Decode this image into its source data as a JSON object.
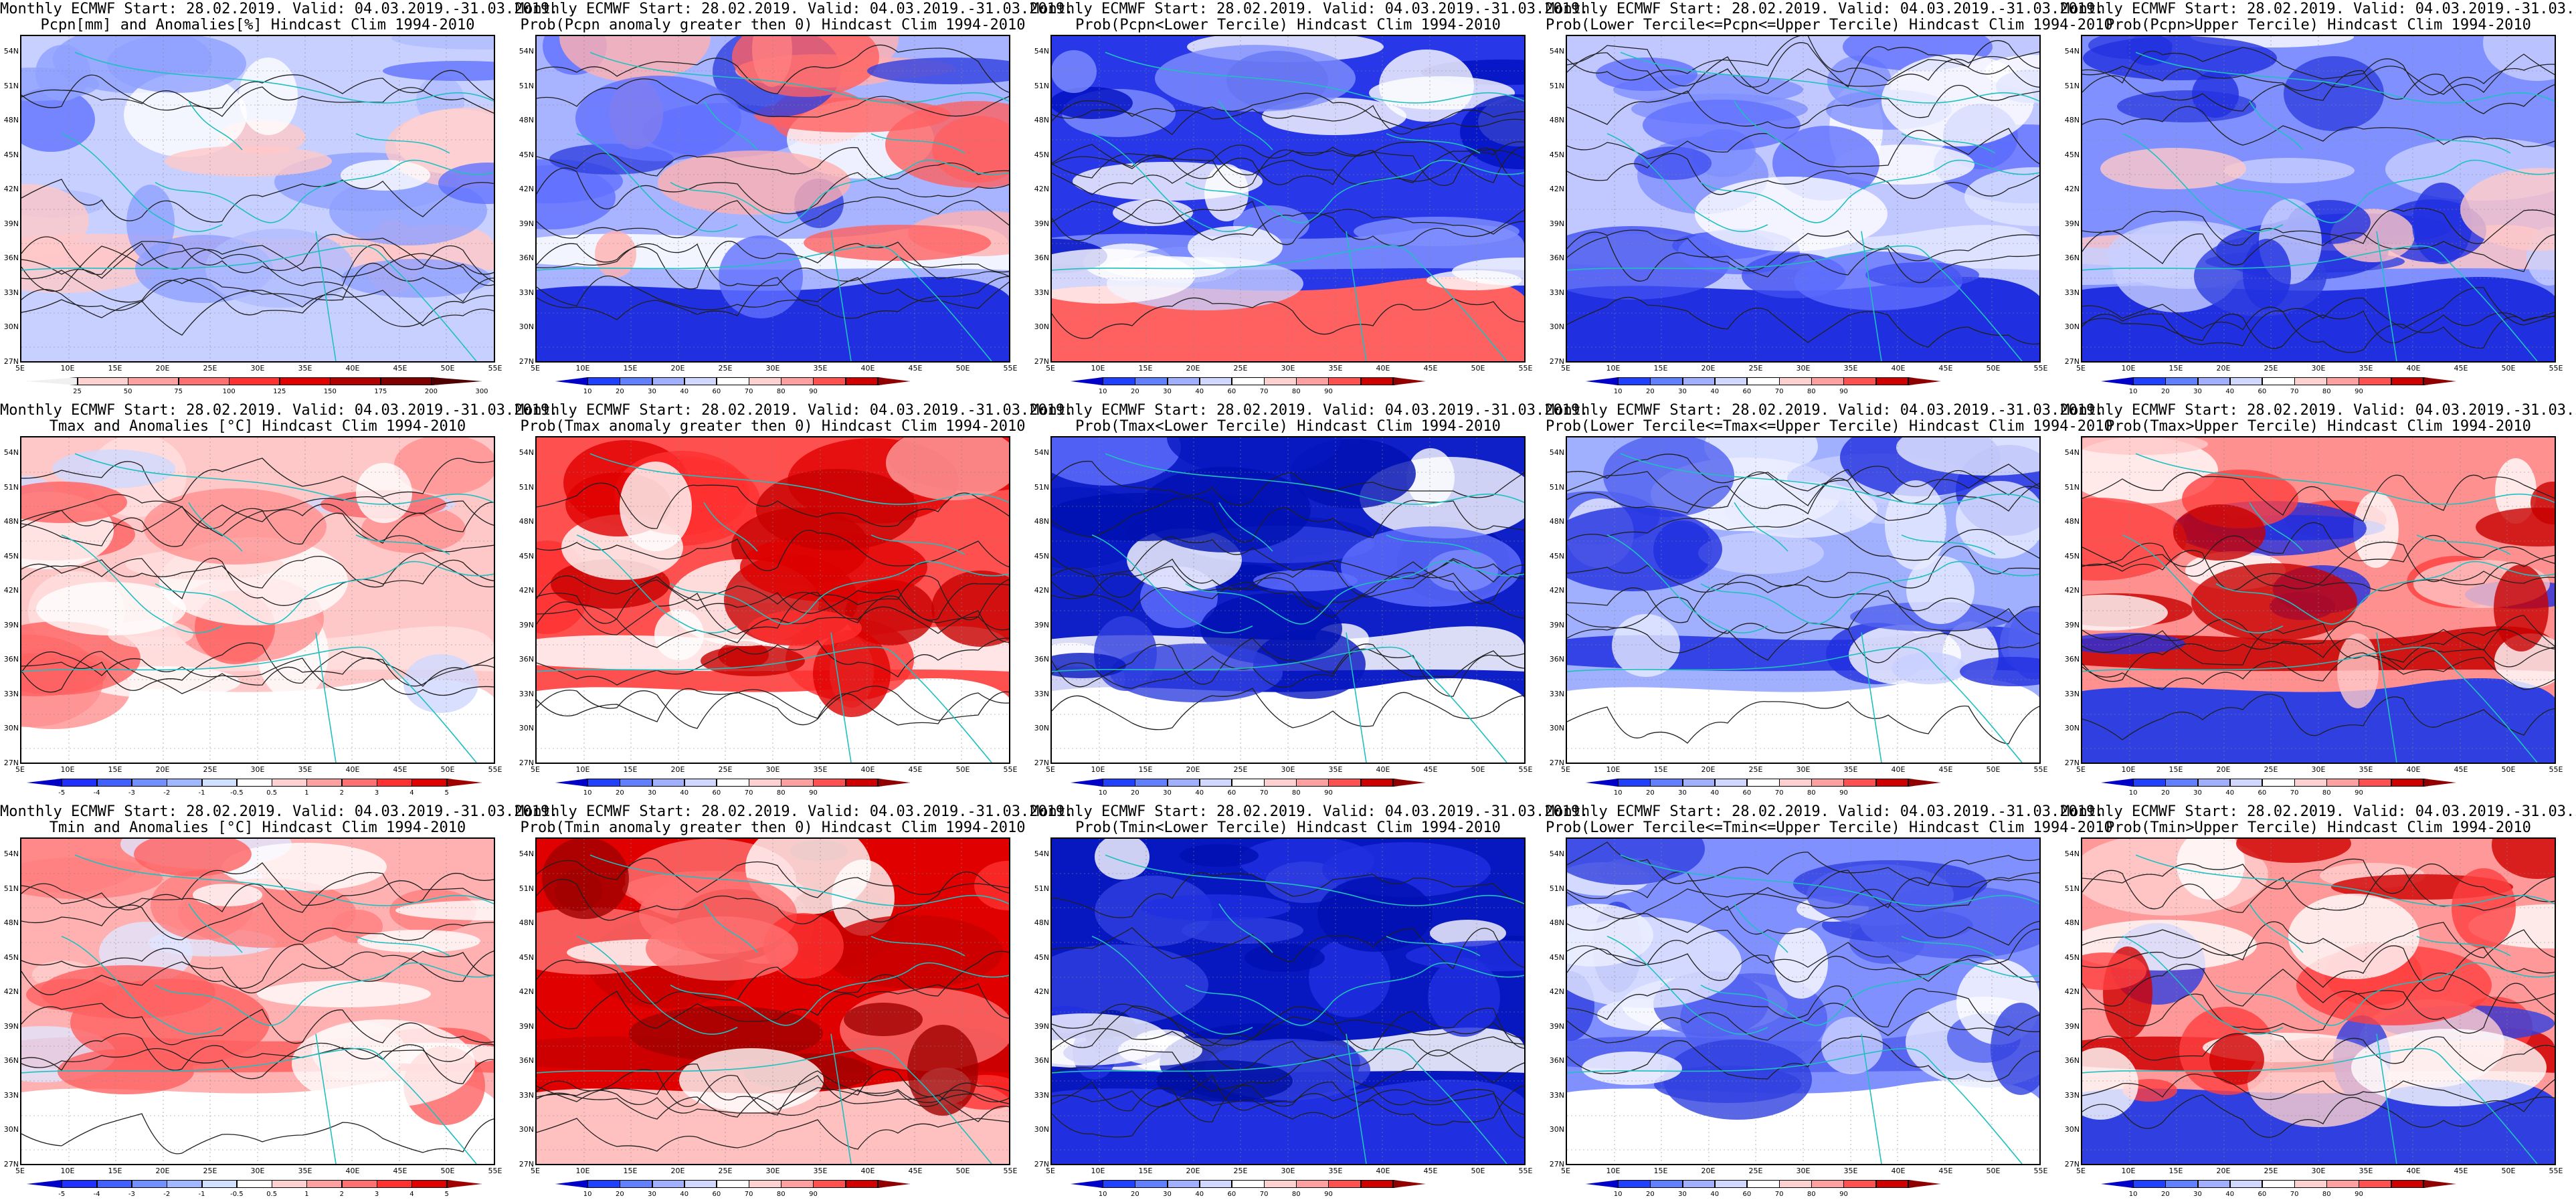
{
  "header": {
    "line1": "Monthly ECMWF Start: 28.02.2019. Valid: 04.03.2019.-31.03.2019."
  },
  "panels": [
    {
      "line2": "Pcpn[mm] and Anomalies[%] Hindcast Clim 1994-2010",
      "scheme": "anom",
      "pattern": "pcpn_anom",
      "cbar": "pcpn"
    },
    {
      "line2": "Prob(Pcpn anomaly greater then 0) Hindcast Clim 1994-2010",
      "scheme": "prob",
      "pattern": "pcpn_p0",
      "cbar": "prob"
    },
    {
      "line2": "Prob(Pcpn<Lower Tercile) Hindcast Clim 1994-2010",
      "scheme": "prob",
      "pattern": "pcpn_lo",
      "cbar": "prob"
    },
    {
      "line2": "Prob(Lower Tercile<=Pcpn<=Upper Tercile) Hindcast Clim 1994-2010",
      "scheme": "prob",
      "pattern": "pcpn_mid",
      "cbar": "prob"
    },
    {
      "line2": "Prob(Pcpn>Upper Tercile) Hindcast Clim 1994-2010",
      "scheme": "prob",
      "pattern": "pcpn_up",
      "cbar": "prob"
    },
    {
      "line2": "Tmax and Anomalies [°C] Hindcast Clim 1994-2010",
      "scheme": "anom",
      "pattern": "t_anom",
      "cbar": "temp"
    },
    {
      "line2": "Prob(Tmax anomaly greater then 0) Hindcast Clim 1994-2010",
      "scheme": "prob",
      "pattern": "t_p0",
      "cbar": "prob"
    },
    {
      "line2": "Prob(Tmax<Lower Tercile) Hindcast Clim 1994-2010",
      "scheme": "prob",
      "pattern": "t_lo",
      "cbar": "prob"
    },
    {
      "line2": "Prob(Lower Tercile<=Tmax<=Upper Tercile) Hindcast Clim 1994-2010",
      "scheme": "prob",
      "pattern": "t_mid",
      "cbar": "prob"
    },
    {
      "line2": "Prob(Tmax>Upper Tercile) Hindcast Clim 1994-2010",
      "scheme": "prob",
      "pattern": "t_up",
      "cbar": "prob"
    },
    {
      "line2": "Tmin and Anomalies [°C] Hindcast Clim 1994-2010",
      "scheme": "anom",
      "pattern": "tmin_anom",
      "cbar": "temp"
    },
    {
      "line2": "Prob(Tmin anomaly greater then 0) Hindcast Clim 1994-2010",
      "scheme": "prob",
      "pattern": "tmin_p0",
      "cbar": "prob"
    },
    {
      "line2": "Prob(Tmin<Lower Tercile) Hindcast Clim 1994-2010",
      "scheme": "prob",
      "pattern": "tmin_lo",
      "cbar": "prob"
    },
    {
      "line2": "Prob(Lower Tercile<=Tmin<=Upper Tercile) Hindcast Clim 1994-2010",
      "scheme": "prob",
      "pattern": "tmin_mid",
      "cbar": "prob"
    },
    {
      "line2": "Prob(Tmin>Upper Tercile) Hindcast Clim 1994-2010",
      "scheme": "prob",
      "pattern": "tmin_up",
      "cbar": "prob"
    }
  ],
  "axes": {
    "lat_labels": [
      "54N",
      "51N",
      "48N",
      "45N",
      "42N",
      "39N",
      "36N",
      "33N",
      "30N",
      "27N"
    ],
    "lon_labels": [
      "5E",
      "10E",
      "15E",
      "20E",
      "25E",
      "30E",
      "35E",
      "40E",
      "45E",
      "50E",
      "55E"
    ]
  },
  "colorbars": {
    "pcpn": {
      "labels": [
        "25",
        "50",
        "75",
        "100",
        "125",
        "150",
        "175",
        "200",
        "300"
      ],
      "colors": [
        "#f0f0f0",
        "#ffd0d0",
        "#ffa0a0",
        "#ff7070",
        "#ff3030",
        "#e00000",
        "#b00000",
        "#800000",
        "#500000"
      ]
    },
    "prob": {
      "labels": [
        "10",
        "20",
        "30",
        "40",
        "60",
        "70",
        "80",
        "90"
      ],
      "colors": [
        "#0000c8",
        "#2040ff",
        "#6080ff",
        "#a0b0ff",
        "#d0d8ff",
        "#ffffff",
        "#ffd0d0",
        "#ffa0a0",
        "#ff5050",
        "#d00000",
        "#900000"
      ]
    },
    "temp": {
      "labels": [
        "-5",
        "-4",
        "-3",
        "-2",
        "-1",
        "-0.5",
        "0.5",
        "1",
        "2",
        "3",
        "4",
        "5"
      ],
      "colors": [
        "#0000c8",
        "#2030ff",
        "#4060ff",
        "#7090ff",
        "#a0b8ff",
        "#d0e0ff",
        "#ffffff",
        "#ffd0d0",
        "#ffa0a0",
        "#ff7070",
        "#ff3030",
        "#e00000",
        "#a00000"
      ]
    }
  },
  "colors": {
    "coast": "#20c0c0",
    "contour": "#202020",
    "deep_blue": "#0010c0",
    "deep_red": "#c80000"
  }
}
